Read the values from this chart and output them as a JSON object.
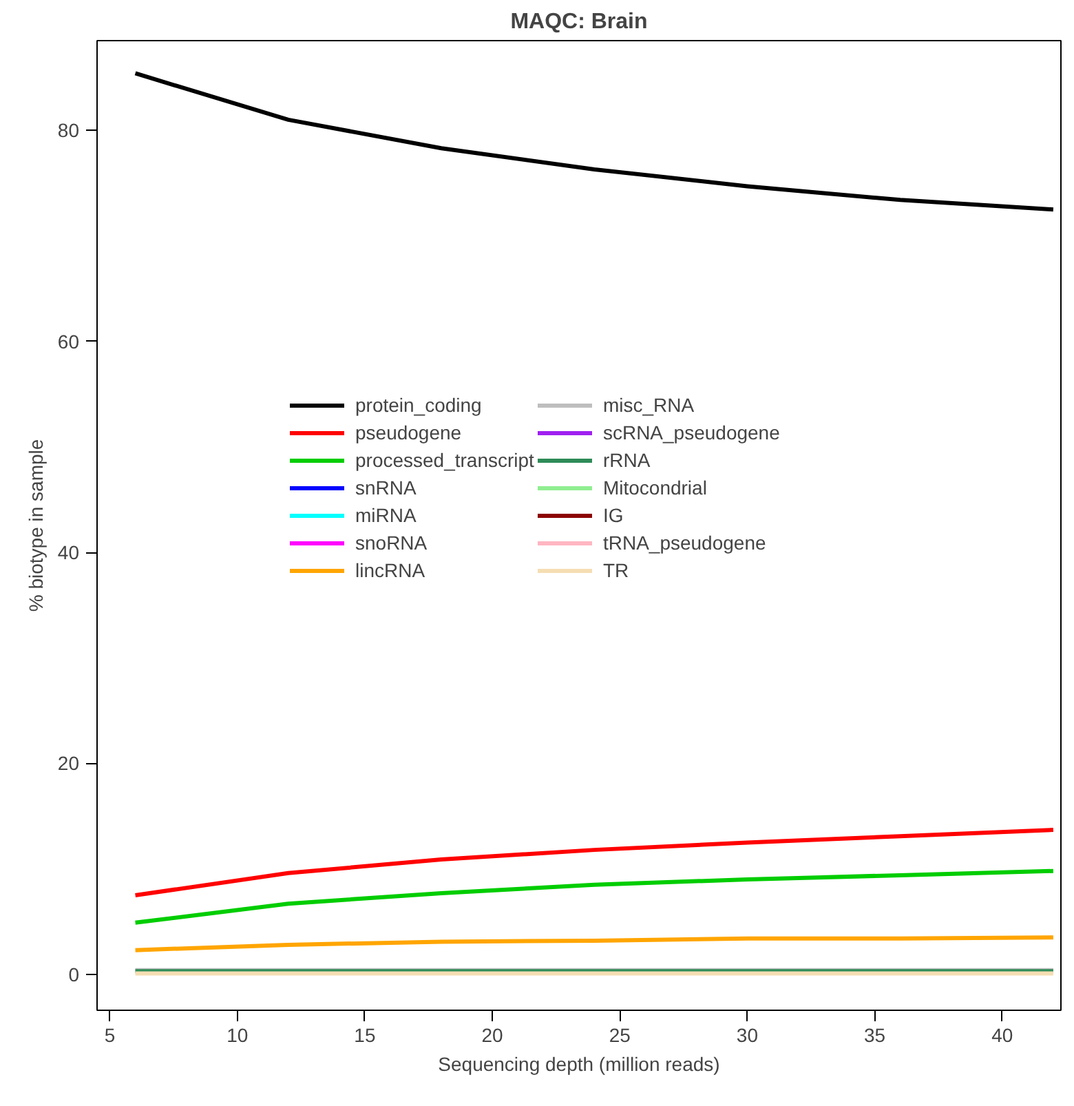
{
  "chart_data": {
    "type": "line",
    "title": "MAQC: Brain",
    "xlabel": "Sequencing depth (million reads)",
    "ylabel": "% biotype in sample",
    "x": [
      6,
      12,
      18,
      24,
      30,
      36,
      42
    ],
    "xlim": [
      4.5,
      42.3
    ],
    "ylim": [
      -3.4,
      88.5
    ],
    "xticks": [
      5,
      10,
      15,
      20,
      25,
      30,
      35,
      40
    ],
    "yticks": [
      0,
      20,
      40,
      60,
      80
    ],
    "grid": false,
    "legend": "center left",
    "marker": "none",
    "line_style": "solid",
    "series": [
      {
        "name": "protein_coding",
        "color": "#000000",
        "values": [
          85.4,
          81.0,
          78.3,
          76.3,
          74.7,
          73.4,
          72.5
        ]
      },
      {
        "name": "pseudogene",
        "color": "#ff0000",
        "values": [
          7.5,
          9.6,
          10.9,
          11.8,
          12.5,
          13.1,
          13.7
        ]
      },
      {
        "name": "processed_transcript",
        "color": "#00cd00",
        "values": [
          4.9,
          6.7,
          7.7,
          8.5,
          9.0,
          9.4,
          9.8
        ]
      },
      {
        "name": "snRNA",
        "color": "#0000ff",
        "values": [
          null,
          null,
          null,
          null,
          null,
          null,
          null
        ]
      },
      {
        "name": "miRNA",
        "color": "#00ffff",
        "values": [
          null,
          null,
          null,
          null,
          null,
          null,
          null
        ]
      },
      {
        "name": "snoRNA",
        "color": "#ff00ff",
        "values": [
          null,
          null,
          null,
          null,
          null,
          null,
          null
        ]
      },
      {
        "name": "lincRNA",
        "color": "#ffa500",
        "values": [
          2.3,
          2.8,
          3.1,
          3.2,
          3.4,
          3.4,
          3.5
        ]
      },
      {
        "name": "misc_RNA",
        "color": "#bebebe",
        "values": [
          0.4,
          0.4,
          0.4,
          0.4,
          0.4,
          0.4,
          0.4
        ]
      },
      {
        "name": "scRNA_pseudogene",
        "color": "#a020f0",
        "values": [
          null,
          null,
          null,
          null,
          null,
          null,
          null
        ]
      },
      {
        "name": "rRNA",
        "color": "#2e8b57",
        "values": [
          0.3,
          0.3,
          0.3,
          0.3,
          0.3,
          0.3,
          0.3
        ]
      },
      {
        "name": "Mitocondrial",
        "color": "#90ee90",
        "values": [
          null,
          null,
          null,
          null,
          null,
          null,
          null
        ]
      },
      {
        "name": "IG",
        "color": "#8b0000",
        "values": [
          null,
          null,
          null,
          null,
          null,
          null,
          null
        ]
      },
      {
        "name": "tRNA_pseudogene",
        "color": "#ffb6c1",
        "values": [
          null,
          null,
          null,
          null,
          null,
          null,
          null
        ]
      },
      {
        "name": "TR",
        "color": "#f5deb3",
        "values": [
          0.1,
          0.1,
          0.1,
          0.1,
          0.1,
          0.1,
          0.1
        ]
      }
    ]
  }
}
